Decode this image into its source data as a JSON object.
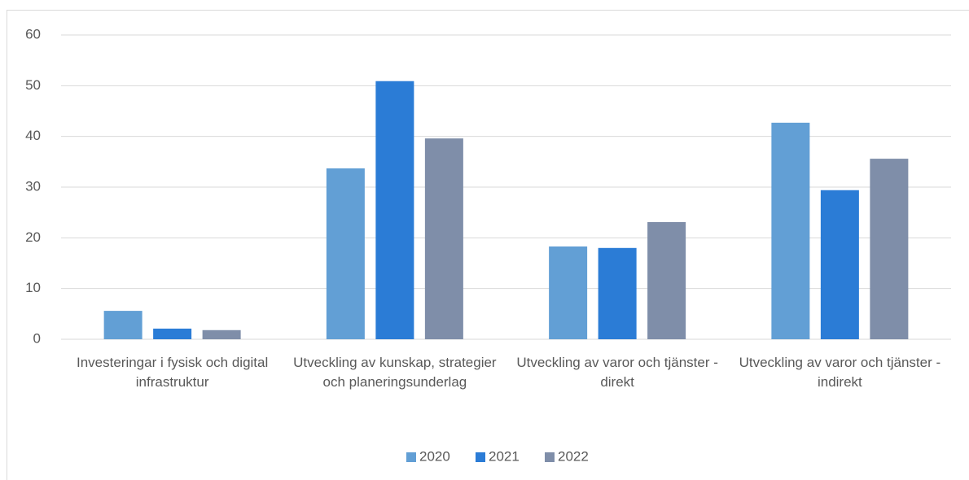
{
  "chart_data": {
    "type": "bar",
    "categories": [
      "Investeringar i fysisk och digital infrastruktur",
      "Utveckling av kunskap, strategier och planeringsunderlag",
      "Utveckling av varor och tjänster - direkt",
      "Utveckling av varor och tjänster - indirekt"
    ],
    "series": [
      {
        "name": "2020",
        "color": "#629fd5",
        "values": [
          5.6,
          33.7,
          18.3,
          42.7
        ]
      },
      {
        "name": "2021",
        "color": "#2b7cd6",
        "values": [
          2.1,
          50.9,
          18.0,
          29.4
        ]
      },
      {
        "name": "2022",
        "color": "#7f8ea9",
        "values": [
          1.8,
          39.6,
          23.1,
          35.6
        ]
      }
    ],
    "ylim": [
      0,
      60
    ],
    "yticks": [
      0,
      10,
      20,
      30,
      40,
      50,
      60
    ],
    "grid": true,
    "legend": "bottom"
  }
}
